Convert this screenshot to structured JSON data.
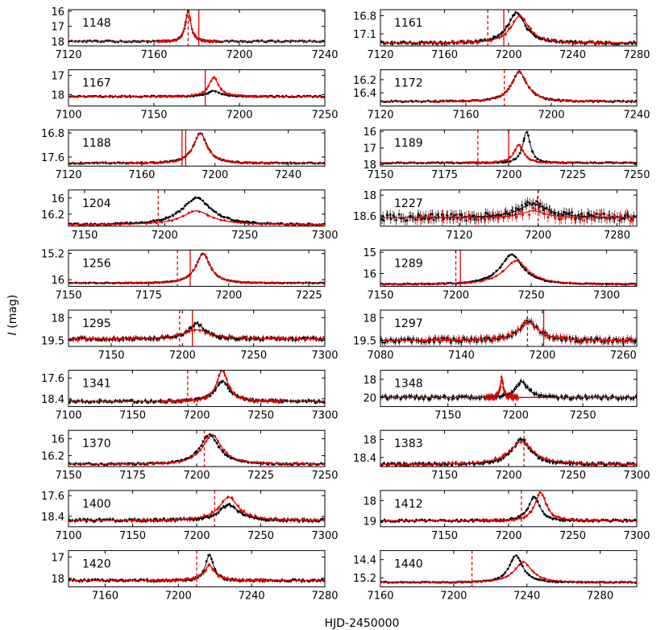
{
  "figure": {
    "xlabel": "HJD-2450000",
    "ylabel_var": "I",
    "ylabel_unit": " (mag)"
  },
  "colors": {
    "data": "#000000",
    "model": "#000000",
    "red": "#dd0000"
  },
  "chart_data": [
    {
      "type": "line",
      "event": "1148",
      "xlim": [
        7120,
        7240
      ],
      "xticks": [
        7120,
        7160,
        7200,
        7240
      ],
      "ylim": [
        18.3,
        15.9
      ],
      "yticks": [
        16,
        17,
        18
      ],
      "peak": 7176,
      "amp": 2.0,
      "tE": 3.5,
      "base": 18.0,
      "redPeak": 7176,
      "redAmp": 2.0,
      "redTE": 3.5,
      "vlines": [
        {
          "x": 7176,
          "style": "dashed"
        },
        {
          "x": 7181,
          "style": "solid"
        }
      ],
      "noise": 0.05
    },
    {
      "type": "line",
      "event": "1161",
      "xlim": [
        7120,
        7280
      ],
      "xticks": [
        7120,
        7160,
        7200,
        7240,
        7280
      ],
      "ylim": [
        17.3,
        16.7
      ],
      "yticks": [
        16.8,
        17.1
      ],
      "peak": 7205,
      "amp": 0.5,
      "tE": 15,
      "base": 17.25,
      "redPeak": 7207,
      "redAmp": 0.45,
      "redTE": 15,
      "vlines": [
        {
          "x": 7187,
          "style": "dashed"
        },
        {
          "x": 7197,
          "style": "solid"
        }
      ],
      "noise": 0.02
    },
    {
      "type": "line",
      "event": "1167",
      "xlim": [
        7100,
        7250
      ],
      "xticks": [
        7100,
        7150,
        7200,
        7250
      ],
      "ylim": [
        18.6,
        16.7
      ],
      "yticks": [
        17,
        18
      ],
      "peak": 7185,
      "amp": 0.3,
      "tE": 10,
      "base": 18.1,
      "redPeak": 7185,
      "redAmp": 1.0,
      "redTE": 8,
      "vlines": [
        {
          "x": 7180,
          "style": "solid"
        }
      ],
      "noise": 0.03
    },
    {
      "type": "line",
      "event": "1172",
      "xlim": [
        7120,
        7240
      ],
      "xticks": [
        7120,
        7160,
        7200,
        7240
      ],
      "ylim": [
        16.6,
        16.05
      ],
      "yticks": [
        16.2,
        16.4
      ],
      "peak": 7185,
      "amp": 0.45,
      "tE": 10,
      "base": 16.53,
      "redPeak": 7185,
      "redAmp": 0.45,
      "redTE": 10,
      "vlines": [
        {
          "x": 7178,
          "style": "dashed"
        }
      ],
      "noise": 0.01
    },
    {
      "type": "line",
      "event": "1188",
      "xlim": [
        7120,
        7260
      ],
      "xticks": [
        7120,
        7160,
        7200,
        7240
      ],
      "ylim": [
        17.9,
        16.7
      ],
      "yticks": [
        16.8,
        17.6
      ],
      "peak": 7192,
      "amp": 1.0,
      "tE": 10,
      "base": 17.8,
      "redPeak": 7192,
      "redAmp": 1.0,
      "redTE": 10,
      "vlines": [
        {
          "x": 7182,
          "style": "solid"
        },
        {
          "x": 7184,
          "style": "solid"
        }
      ],
      "noise": 0.02
    },
    {
      "type": "line",
      "event": "1189",
      "xlim": [
        7150,
        7250
      ],
      "xticks": [
        7150,
        7175,
        7200,
        7225,
        7250
      ],
      "ylim": [
        18.1,
        15.9
      ],
      "yticks": [
        16,
        17,
        18
      ],
      "peak": 7207,
      "amp": 1.9,
      "tE": 4,
      "base": 17.9,
      "redPeak": 7204,
      "redAmp": 1.1,
      "redTE": 5,
      "vlines": [
        {
          "x": 7188,
          "style": "dashed"
        },
        {
          "x": 7200,
          "style": "solid"
        }
      ],
      "noise": 0.03
    },
    {
      "type": "line",
      "event": "1204",
      "xlim": [
        7140,
        7300
      ],
      "xticks": [
        7150,
        7200,
        7250,
        7300
      ],
      "ylim": [
        16.35,
        15.9
      ],
      "yticks": [
        16.0,
        16.2
      ],
      "peak": 7220,
      "amp": 0.33,
      "tE": 25,
      "base": 16.33,
      "redPeak": 7220,
      "redAmp": 0.17,
      "redTE": 25,
      "vlines": [
        {
          "x": 7196,
          "style": "dashed"
        }
      ],
      "noise": 0.01
    },
    {
      "type": "line",
      "event": "1227",
      "xlim": [
        7040,
        7300
      ],
      "xticks": [
        7120,
        7200,
        7280
      ],
      "ylim": [
        18.9,
        17.85
      ],
      "yticks": [
        18.0,
        18.6
      ],
      "peak": 7195,
      "amp": 0.4,
      "tE": 40,
      "base": 18.65,
      "redPeak": 7195,
      "redAmp": 0.2,
      "redTE": 30,
      "vlines": [
        {
          "x": 7200,
          "style": "dashed"
        }
      ],
      "noise": 0.1
    },
    {
      "type": "line",
      "event": "1256",
      "xlim": [
        7150,
        7230
      ],
      "xticks": [
        7150,
        7175,
        7200,
        7225
      ],
      "ylim": [
        16.2,
        15.1
      ],
      "yticks": [
        15.2,
        16.0
      ],
      "peak": 7192,
      "amp": 0.9,
      "tE": 6,
      "base": 16.1,
      "redPeak": 7192,
      "redAmp": 0.9,
      "redTE": 6,
      "vlines": [
        {
          "x": 7184,
          "style": "dashed"
        },
        {
          "x": 7188,
          "style": "solid"
        }
      ],
      "noise": 0.01
    },
    {
      "type": "line",
      "event": "1289",
      "xlim": [
        7150,
        7320
      ],
      "xticks": [
        7150,
        7200,
        7250,
        7300
      ],
      "ylim": [
        16.6,
        14.9
      ],
      "yticks": [
        15,
        16
      ],
      "peak": 7237,
      "amp": 1.4,
      "tE": 20,
      "base": 16.5,
      "redPeak": 7240,
      "redAmp": 1.1,
      "redTE": 22,
      "vlines": [
        {
          "x": 7200,
          "style": "dashed"
        },
        {
          "x": 7203,
          "style": "solid"
        }
      ],
      "noise": 0.02
    },
    {
      "type": "line",
      "event": "1295",
      "xlim": [
        7120,
        7300
      ],
      "xticks": [
        7150,
        7200,
        7250,
        7300
      ],
      "ylim": [
        19.9,
        17.5
      ],
      "yticks": [
        18.0,
        19.5
      ],
      "peak": 7210,
      "amp": 1.0,
      "tE": 15,
      "base": 19.4,
      "redPeak": 7210,
      "redAmp": 0.6,
      "redTE": 25,
      "vlines": [
        {
          "x": 7198,
          "style": "dashed"
        },
        {
          "x": 7207,
          "style": "solid"
        }
      ],
      "noise": 0.1
    },
    {
      "type": "line",
      "event": "1297",
      "xlim": [
        7080,
        7270
      ],
      "xticks": [
        7080,
        7140,
        7200,
        7260
      ],
      "ylim": [
        19.9,
        17.5
      ],
      "yticks": [
        18.0,
        19.5
      ],
      "peak": 7190,
      "amp": 1.2,
      "tE": 20,
      "base": 19.5,
      "redPeak": 7190,
      "redAmp": 1.2,
      "redTE": 20,
      "vlines": [
        {
          "x": 7189,
          "style": "dashed"
        },
        {
          "x": 7201,
          "style": "solid"
        }
      ],
      "noise": 0.15
    },
    {
      "type": "line",
      "event": "1341",
      "xlim": [
        7100,
        7300
      ],
      "xticks": [
        7100,
        7150,
        7200,
        7250,
        7300
      ],
      "ylim": [
        18.7,
        17.3
      ],
      "yticks": [
        17.6,
        18.4
      ],
      "peak": 7220,
      "amp": 0.8,
      "tE": 15,
      "base": 18.5,
      "redPeak": 7220,
      "redAmp": 1.2,
      "redTE": 12,
      "vlines": [
        {
          "x": 7193,
          "style": "dashed"
        }
      ],
      "noise": 0.05
    },
    {
      "type": "line",
      "event": "1348",
      "xlim": [
        7100,
        7290
      ],
      "xticks": [
        7150,
        7200,
        7250
      ],
      "ylim": [
        21.0,
        17.0
      ],
      "yticks": [
        18,
        20
      ],
      "peak": 7205,
      "amp": 1.7,
      "tE": 12,
      "base": 20.0,
      "redPeak": 7190,
      "redAmp": 2.2,
      "redTE": 3,
      "vlines": [],
      "noise": 0.2
    },
    {
      "type": "line",
      "event": "1370",
      "xlim": [
        7150,
        7250
      ],
      "xticks": [
        7150,
        7175,
        7200,
        7225,
        7250
      ],
      "ylim": [
        16.33,
        15.9
      ],
      "yticks": [
        16.0,
        16.2
      ],
      "peak": 7205,
      "amp": 0.35,
      "tE": 10,
      "base": 16.3,
      "redPeak": 7206,
      "redAmp": 0.35,
      "redTE": 10,
      "vlines": [
        {
          "x": 7203,
          "style": "dashed"
        }
      ],
      "noise": 0.01
    },
    {
      "type": "line",
      "event": "1383",
      "xlim": [
        7100,
        7300
      ],
      "xticks": [
        7150,
        7200,
        7250,
        7300
      ],
      "ylim": [
        18.6,
        17.8
      ],
      "yticks": [
        18.0,
        18.4
      ],
      "peak": 7210,
      "amp": 0.55,
      "tE": 20,
      "base": 18.55,
      "redPeak": 7210,
      "redAmp": 0.5,
      "redTE": 25,
      "vlines": [
        {
          "x": 7212,
          "style": "dashed"
        }
      ],
      "noise": 0.03
    },
    {
      "type": "line",
      "event": "1400",
      "xlim": [
        7100,
        7300
      ],
      "xticks": [
        7100,
        7150,
        7200,
        7250,
        7300
      ],
      "ylim": [
        18.8,
        17.4
      ],
      "yticks": [
        17.6,
        18.4
      ],
      "peak": 7225,
      "amp": 0.6,
      "tE": 20,
      "base": 18.55,
      "redPeak": 7225,
      "redAmp": 0.9,
      "redTE": 20,
      "vlines": [
        {
          "x": 7214,
          "style": "dashed"
        }
      ],
      "noise": 0.05
    },
    {
      "type": "line",
      "event": "1412",
      "xlim": [
        7100,
        7300
      ],
      "xticks": [
        7150,
        7200,
        7250,
        7300
      ],
      "ylim": [
        19.3,
        17.5
      ],
      "yticks": [
        18,
        19
      ],
      "peak": 7220,
      "amp": 1.2,
      "tE": 12,
      "base": 19.0,
      "redPeak": 7225,
      "redAmp": 1.4,
      "redTE": 12,
      "vlines": [
        {
          "x": 7210,
          "style": "dashed"
        }
      ],
      "noise": 0.05
    },
    {
      "type": "line",
      "event": "1420",
      "xlim": [
        7140,
        7280
      ],
      "xticks": [
        7160,
        7200,
        7240,
        7280
      ],
      "ylim": [
        18.4,
        16.7
      ],
      "yticks": [
        17,
        18
      ],
      "peak": 7217,
      "amp": 1.2,
      "tE": 6,
      "base": 18.1,
      "redPeak": 7217,
      "redAmp": 0.7,
      "redTE": 8,
      "vlines": [
        {
          "x": 7210,
          "style": "dashed"
        }
      ],
      "noise": 0.05
    },
    {
      "type": "line",
      "event": "1440",
      "xlim": [
        7160,
        7300
      ],
      "xticks": [
        7160,
        7200,
        7240,
        7280
      ],
      "ylim": [
        15.6,
        14.0
      ],
      "yticks": [
        14.4,
        15.2
      ],
      "peak": 7234,
      "amp": 1.2,
      "tE": 10,
      "base": 15.4,
      "redPeak": 7238,
      "redAmp": 0.9,
      "redTE": 13,
      "vlines": [
        {
          "x": 7210,
          "style": "dashed"
        }
      ],
      "noise": 0.02
    }
  ]
}
